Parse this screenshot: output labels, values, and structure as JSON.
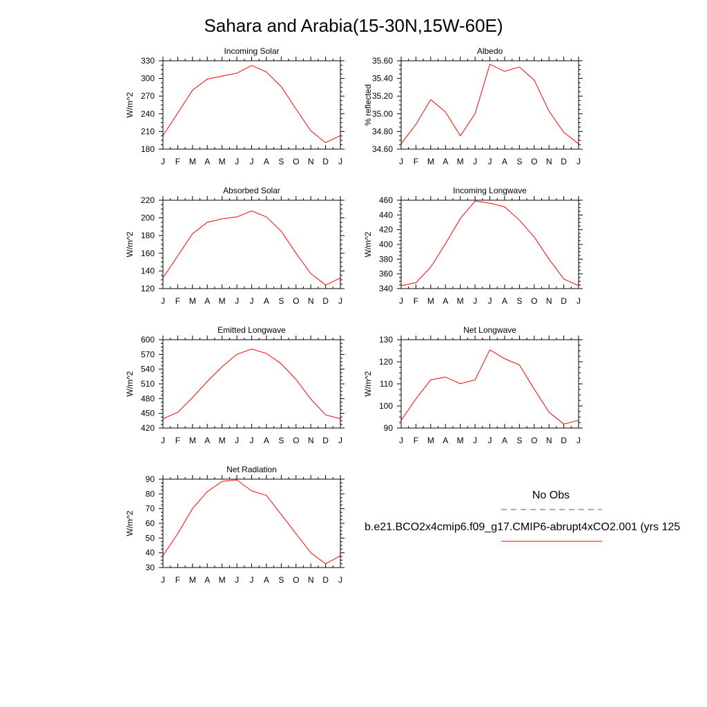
{
  "title": "Sahara and Arabia(15-30N,15W-60E)",
  "month_labels": [
    "J",
    "F",
    "M",
    "A",
    "M",
    "J",
    "J",
    "A",
    "S",
    "O",
    "N",
    "D",
    "J"
  ],
  "legend": {
    "obs_label": "No Obs",
    "model_label": "b.e21.BCO2x4cmip6.f09_g17.CMIP6-abrupt4xCO2.001 (yrs 125",
    "obs_color": "#4a4ae6",
    "model_color": "#ff0000"
  },
  "chart_data": [
    {
      "type": "line",
      "title": "Incoming Solar",
      "ylabel": "W/m^2",
      "ylim": [
        180,
        330
      ],
      "yticks": [
        180,
        210,
        240,
        270,
        300,
        330
      ],
      "ytick_labels": [
        "180",
        "210",
        "240",
        "270",
        "300",
        "330"
      ],
      "x": [
        "J",
        "F",
        "M",
        "A",
        "M",
        "J",
        "J",
        "A",
        "S",
        "O",
        "N",
        "D",
        "J"
      ],
      "series": [
        {
          "values": [
            203,
            241,
            280,
            299,
            304,
            309,
            322,
            311,
            286,
            248,
            211,
            191,
            203
          ],
          "color": "#ff0000"
        }
      ]
    },
    {
      "type": "line",
      "title": "Albedo",
      "ylabel": "% reflected",
      "ylim": [
        34.6,
        35.6
      ],
      "yticks": [
        34.6,
        34.8,
        35.0,
        35.2,
        35.4,
        35.6
      ],
      "ytick_labels": [
        "34.60",
        "34.80",
        "35.00",
        "35.20",
        "35.40",
        "35.60"
      ],
      "x": [
        "J",
        "F",
        "M",
        "A",
        "M",
        "J",
        "J",
        "A",
        "S",
        "O",
        "N",
        "D",
        "J"
      ],
      "series": [
        {
          "values": [
            34.66,
            34.88,
            35.16,
            35.02,
            34.75,
            35.0,
            35.56,
            35.48,
            35.53,
            35.38,
            35.03,
            34.79,
            34.66
          ],
          "color": "#ff0000"
        }
      ]
    },
    {
      "type": "line",
      "title": "Absorbed Solar",
      "ylabel": "W/m^2",
      "ylim": [
        120,
        220
      ],
      "yticks": [
        120,
        140,
        160,
        180,
        200,
        220
      ],
      "ytick_labels": [
        "120",
        "140",
        "160",
        "180",
        "200",
        "220"
      ],
      "x": [
        "J",
        "F",
        "M",
        "A",
        "M",
        "J",
        "J",
        "A",
        "S",
        "O",
        "N",
        "D",
        "J"
      ],
      "series": [
        {
          "values": [
            132,
            157,
            182,
            195,
            199,
            201,
            208,
            201,
            185,
            160,
            137,
            124,
            132
          ],
          "color": "#ff0000"
        }
      ]
    },
    {
      "type": "line",
      "title": "Incoming Longwave",
      "ylabel": "W/m^2",
      "ylim": [
        340,
        460
      ],
      "yticks": [
        340,
        360,
        380,
        400,
        420,
        440,
        460
      ],
      "ytick_labels": [
        "340",
        "360",
        "380",
        "400",
        "420",
        "440",
        "460"
      ],
      "x": [
        "J",
        "F",
        "M",
        "A",
        "M",
        "J",
        "J",
        "A",
        "S",
        "O",
        "N",
        "D",
        "J"
      ],
      "series": [
        {
          "values": [
            344,
            348,
            369,
            401,
            435,
            459,
            456,
            451,
            433,
            410,
            380,
            353,
            344
          ],
          "color": "#ff0000"
        }
      ]
    },
    {
      "type": "line",
      "title": "Emitted Longwave",
      "ylabel": "W/m^2",
      "ylim": [
        420,
        600
      ],
      "yticks": [
        420,
        450,
        480,
        510,
        540,
        570,
        600
      ],
      "ytick_labels": [
        "420",
        "450",
        "480",
        "510",
        "540",
        "570",
        "600"
      ],
      "x": [
        "J",
        "F",
        "M",
        "A",
        "M",
        "J",
        "J",
        "A",
        "S",
        "O",
        "N",
        "D",
        "J"
      ],
      "series": [
        {
          "values": [
            439,
            452,
            482,
            515,
            545,
            570,
            581,
            572,
            551,
            519,
            479,
            447,
            439
          ],
          "color": "#ff0000"
        }
      ]
    },
    {
      "type": "line",
      "title": "Net Longwave",
      "ylabel": "W/m^2",
      "ylim": [
        90,
        130
      ],
      "yticks": [
        90,
        100,
        110,
        120,
        130
      ],
      "ytick_labels": [
        "90",
        "100",
        "110",
        "120",
        "130"
      ],
      "x": [
        "J",
        "F",
        "M",
        "A",
        "M",
        "J",
        "J",
        "A",
        "S",
        "O",
        "N",
        "D",
        "J"
      ],
      "series": [
        {
          "values": [
            93.5,
            103.2,
            111.8,
            113.1,
            110.1,
            111.8,
            125.4,
            121.4,
            118.6,
            107.6,
            97.2,
            91.8,
            93.5
          ],
          "color": "#ff0000"
        }
      ]
    },
    {
      "type": "line",
      "title": "Net Radiation",
      "ylabel": "W/m^2",
      "ylim": [
        30,
        90
      ],
      "yticks": [
        30,
        40,
        50,
        60,
        70,
        80,
        90
      ],
      "ytick_labels": [
        "30",
        "40",
        "50",
        "60",
        "70",
        "80",
        "90"
      ],
      "x": [
        "J",
        "F",
        "M",
        "A",
        "M",
        "J",
        "J",
        "A",
        "S",
        "O",
        "N",
        "D",
        "J"
      ],
      "series": [
        {
          "values": [
            38,
            53,
            70,
            81.5,
            88.5,
            89.5,
            82,
            79,
            66,
            53,
            40,
            32.5,
            38
          ],
          "color": "#ff0000"
        }
      ]
    }
  ]
}
